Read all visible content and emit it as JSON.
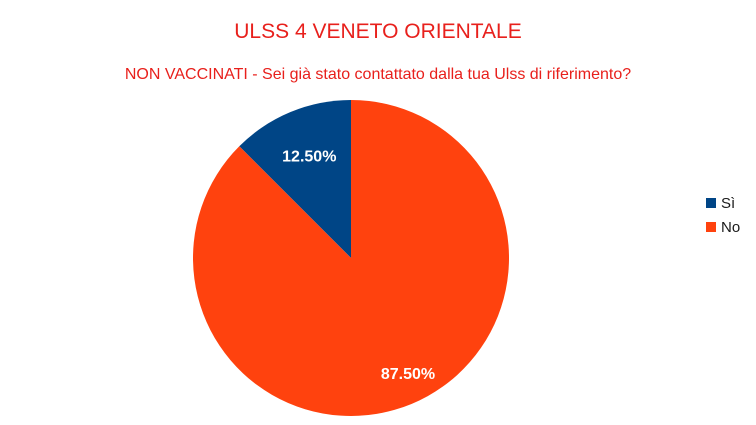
{
  "chart_data": {
    "type": "pie",
    "title": "ULSS 4 VENETO ORIENTALE",
    "subtitle": "NON VACCINATI - Sei già stato contattato dalla tua Ulss di riferimento?",
    "slices": [
      {
        "label": "Sì",
        "value": 12.5,
        "display": "12.50%",
        "color": "#004586"
      },
      {
        "label": "No",
        "value": 87.5,
        "display": "87.50%",
        "color": "#ff420e"
      }
    ],
    "legend_position": "right",
    "start_angle_deg": 0,
    "direction": "counterclockwise"
  }
}
